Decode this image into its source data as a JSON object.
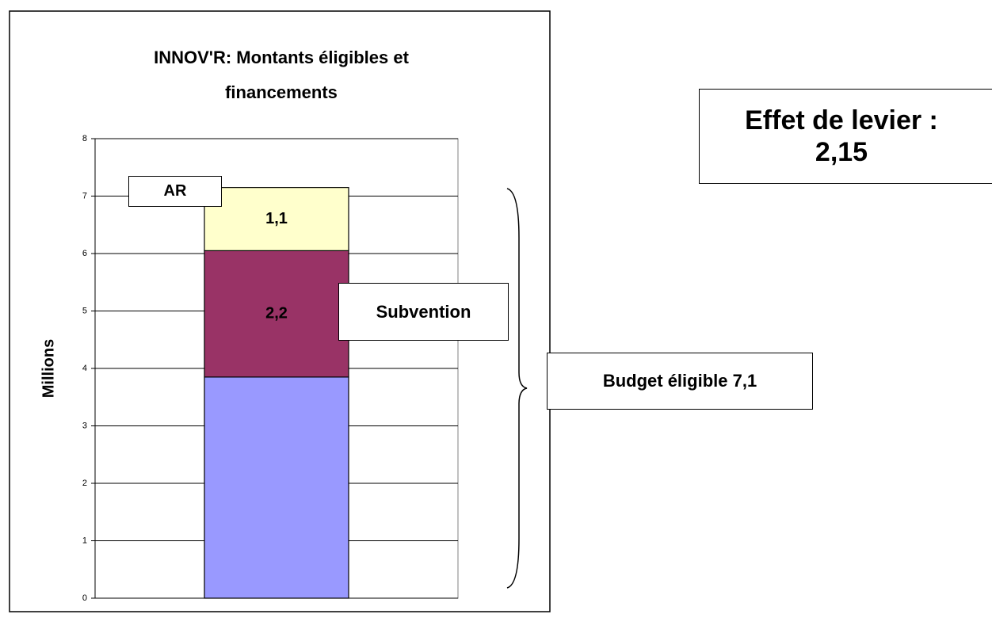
{
  "chart_data": {
    "type": "stacked_bar",
    "title": "INNOV'R: Montants éligibles et financements",
    "y_label": "Millions",
    "categories": [
      null
    ],
    "series": [
      {
        "color": "#9999ff",
        "values": [
          3.85
        ]
      },
      {
        "name": "Subvention",
        "color": "#993366",
        "values": [
          2.2
        ],
        "value_labels": [
          "2,2"
        ]
      },
      {
        "name": "AR",
        "color": "#ffffcc",
        "values": [
          1.1
        ],
        "value_labels": [
          "1,1"
        ]
      }
    ],
    "ylim": [
      0,
      8
    ],
    "yticks": [
      0,
      1,
      2,
      3,
      4,
      5,
      6,
      7,
      8
    ],
    "grid": true,
    "annotations": {
      "budget": "Budget éligible 7,1",
      "leverage": [
        "Effet de levier :",
        "2,15"
      ]
    }
  }
}
